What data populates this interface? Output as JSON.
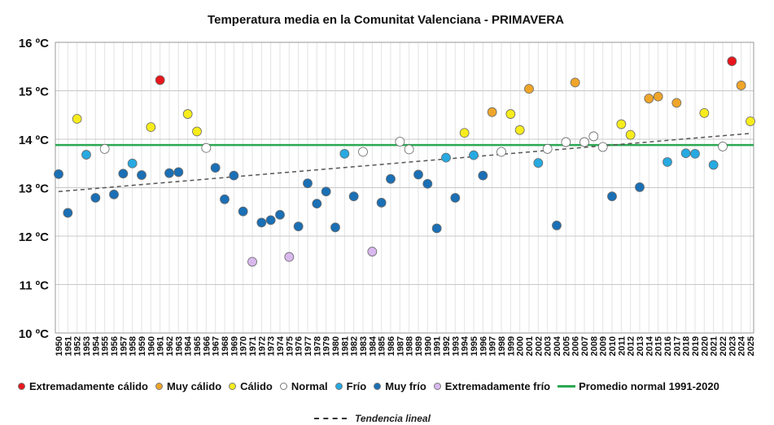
{
  "chart_data": {
    "type": "scatter",
    "title": "Temperatura media en la Comunitat Valenciana - PRIMAVERA",
    "xlabel": "",
    "ylabel": "",
    "ylim": [
      10,
      16
    ],
    "yticks": [
      "10 ºC",
      "11 ºC",
      "12 ºC",
      "13 ºC",
      "14 ºC",
      "15 ºC",
      "16 ºC"
    ],
    "xlim": [
      1950,
      2025
    ],
    "x": [
      1950,
      1951,
      1952,
      1953,
      1954,
      1955,
      1956,
      1957,
      1958,
      1959,
      1960,
      1961,
      1962,
      1963,
      1964,
      1965,
      1966,
      1967,
      1968,
      1969,
      1970,
      1971,
      1972,
      1973,
      1974,
      1975,
      1976,
      1977,
      1978,
      1979,
      1980,
      1981,
      1982,
      1983,
      1984,
      1985,
      1986,
      1987,
      1988,
      1989,
      1990,
      1991,
      1992,
      1993,
      1994,
      1995,
      1996,
      1997,
      1998,
      1999,
      2000,
      2001,
      2002,
      2003,
      2004,
      2005,
      2006,
      2007,
      2008,
      2009,
      2010,
      2011,
      2012,
      2013,
      2014,
      2015,
      2016,
      2017,
      2018,
      2019,
      2020,
      2021,
      2022,
      2023,
      2024,
      2025
    ],
    "grid": true,
    "categories": [
      {
        "key": "ext_calido",
        "name": "Extremadamente cálido",
        "color": "#e8161b"
      },
      {
        "key": "muy_calido",
        "name": "Muy cálido",
        "color": "#eea52a"
      },
      {
        "key": "calido",
        "name": "Cálido",
        "color": "#f7ec1c"
      },
      {
        "key": "normal",
        "name": "Normal",
        "color": "#ffffff"
      },
      {
        "key": "frio",
        "name": "Frío",
        "color": "#27a9e1"
      },
      {
        "key": "muy_frio",
        "name": "Muy frío",
        "color": "#1a6fb5"
      },
      {
        "key": "ext_frio",
        "name": "Extremadamente frío",
        "color": "#d9b8ee"
      }
    ],
    "points": [
      {
        "x": 1950,
        "y": 13.28,
        "c": "muy_frio"
      },
      {
        "x": 1951,
        "y": 12.48,
        "c": "muy_frio"
      },
      {
        "x": 1952,
        "y": 14.42,
        "c": "calido"
      },
      {
        "x": 1953,
        "y": 13.68,
        "c": "frio"
      },
      {
        "x": 1954,
        "y": 12.79,
        "c": "muy_frio"
      },
      {
        "x": 1955,
        "y": 13.8,
        "c": "normal"
      },
      {
        "x": 1956,
        "y": 12.86,
        "c": "muy_frio"
      },
      {
        "x": 1957,
        "y": 13.29,
        "c": "muy_frio"
      },
      {
        "x": 1958,
        "y": 13.5,
        "c": "frio"
      },
      {
        "x": 1959,
        "y": 13.26,
        "c": "muy_frio"
      },
      {
        "x": 1960,
        "y": 14.25,
        "c": "calido"
      },
      {
        "x": 1961,
        "y": 15.22,
        "c": "ext_calido"
      },
      {
        "x": 1962,
        "y": 13.3,
        "c": "muy_frio"
      },
      {
        "x": 1963,
        "y": 13.32,
        "c": "muy_frio"
      },
      {
        "x": 1964,
        "y": 14.52,
        "c": "calido"
      },
      {
        "x": 1965,
        "y": 14.16,
        "c": "calido"
      },
      {
        "x": 1966,
        "y": 13.82,
        "c": "normal"
      },
      {
        "x": 1967,
        "y": 13.41,
        "c": "muy_frio"
      },
      {
        "x": 1968,
        "y": 12.76,
        "c": "muy_frio"
      },
      {
        "x": 1969,
        "y": 13.25,
        "c": "muy_frio"
      },
      {
        "x": 1970,
        "y": 12.51,
        "c": "muy_frio"
      },
      {
        "x": 1971,
        "y": 11.47,
        "c": "ext_frio"
      },
      {
        "x": 1972,
        "y": 12.28,
        "c": "muy_frio"
      },
      {
        "x": 1973,
        "y": 12.33,
        "c": "muy_frio"
      },
      {
        "x": 1974,
        "y": 12.44,
        "c": "muy_frio"
      },
      {
        "x": 1975,
        "y": 11.57,
        "c": "ext_frio"
      },
      {
        "x": 1976,
        "y": 12.2,
        "c": "muy_frio"
      },
      {
        "x": 1977,
        "y": 13.09,
        "c": "muy_frio"
      },
      {
        "x": 1978,
        "y": 12.67,
        "c": "muy_frio"
      },
      {
        "x": 1979,
        "y": 12.92,
        "c": "muy_frio"
      },
      {
        "x": 1980,
        "y": 12.18,
        "c": "muy_frio"
      },
      {
        "x": 1981,
        "y": 13.7,
        "c": "frio"
      },
      {
        "x": 1982,
        "y": 12.82,
        "c": "muy_frio"
      },
      {
        "x": 1983,
        "y": 13.74,
        "c": "normal"
      },
      {
        "x": 1984,
        "y": 11.68,
        "c": "ext_frio"
      },
      {
        "x": 1985,
        "y": 12.69,
        "c": "muy_frio"
      },
      {
        "x": 1986,
        "y": 13.18,
        "c": "muy_frio"
      },
      {
        "x": 1987,
        "y": 13.95,
        "c": "normal"
      },
      {
        "x": 1988,
        "y": 13.79,
        "c": "normal"
      },
      {
        "x": 1989,
        "y": 13.27,
        "c": "muy_frio"
      },
      {
        "x": 1990,
        "y": 13.08,
        "c": "muy_frio"
      },
      {
        "x": 1991,
        "y": 12.16,
        "c": "muy_frio"
      },
      {
        "x": 1992,
        "y": 13.62,
        "c": "frio"
      },
      {
        "x": 1993,
        "y": 12.79,
        "c": "muy_frio"
      },
      {
        "x": 1994,
        "y": 14.13,
        "c": "calido"
      },
      {
        "x": 1995,
        "y": 13.67,
        "c": "frio"
      },
      {
        "x": 1996,
        "y": 13.25,
        "c": "muy_frio"
      },
      {
        "x": 1997,
        "y": 14.56,
        "c": "muy_calido"
      },
      {
        "x": 1998,
        "y": 13.74,
        "c": "normal"
      },
      {
        "x": 1999,
        "y": 14.52,
        "c": "calido"
      },
      {
        "x": 2000,
        "y": 14.19,
        "c": "calido"
      },
      {
        "x": 2001,
        "y": 15.04,
        "c": "muy_calido"
      },
      {
        "x": 2002,
        "y": 13.51,
        "c": "frio"
      },
      {
        "x": 2003,
        "y": 13.8,
        "c": "normal"
      },
      {
        "x": 2004,
        "y": 12.22,
        "c": "muy_frio"
      },
      {
        "x": 2005,
        "y": 13.94,
        "c": "normal"
      },
      {
        "x": 2006,
        "y": 15.17,
        "c": "muy_calido"
      },
      {
        "x": 2007,
        "y": 13.94,
        "c": "normal"
      },
      {
        "x": 2008,
        "y": 14.06,
        "c": "normal"
      },
      {
        "x": 2009,
        "y": 13.84,
        "c": "normal"
      },
      {
        "x": 2010,
        "y": 12.82,
        "c": "muy_frio"
      },
      {
        "x": 2011,
        "y": 14.31,
        "c": "calido"
      },
      {
        "x": 2012,
        "y": 14.09,
        "c": "calido"
      },
      {
        "x": 2013,
        "y": 13.01,
        "c": "muy_frio"
      },
      {
        "x": 2014,
        "y": 14.84,
        "c": "muy_calido"
      },
      {
        "x": 2015,
        "y": 14.88,
        "c": "muy_calido"
      },
      {
        "x": 2016,
        "y": 13.53,
        "c": "frio"
      },
      {
        "x": 2017,
        "y": 14.75,
        "c": "muy_calido"
      },
      {
        "x": 2018,
        "y": 13.71,
        "c": "frio"
      },
      {
        "x": 2019,
        "y": 13.7,
        "c": "frio"
      },
      {
        "x": 2020,
        "y": 14.54,
        "c": "calido"
      },
      {
        "x": 2021,
        "y": 13.47,
        "c": "frio"
      },
      {
        "x": 2022,
        "y": 13.85,
        "c": "normal"
      },
      {
        "x": 2023,
        "y": 15.61,
        "c": "ext_calido"
      },
      {
        "x": 2024,
        "y": 15.11,
        "c": "muy_calido"
      },
      {
        "x": 2025,
        "y": 14.37,
        "c": "calido"
      }
    ],
    "average_line": {
      "name": "Promedio normal 1991-2020",
      "y": 13.88,
      "color": "#2aa852"
    },
    "trend_line": {
      "name": "Tendencia lineal",
      "y_start": 12.92,
      "y_end": 14.12,
      "color": "#555555"
    },
    "legend_position": "bottom"
  }
}
